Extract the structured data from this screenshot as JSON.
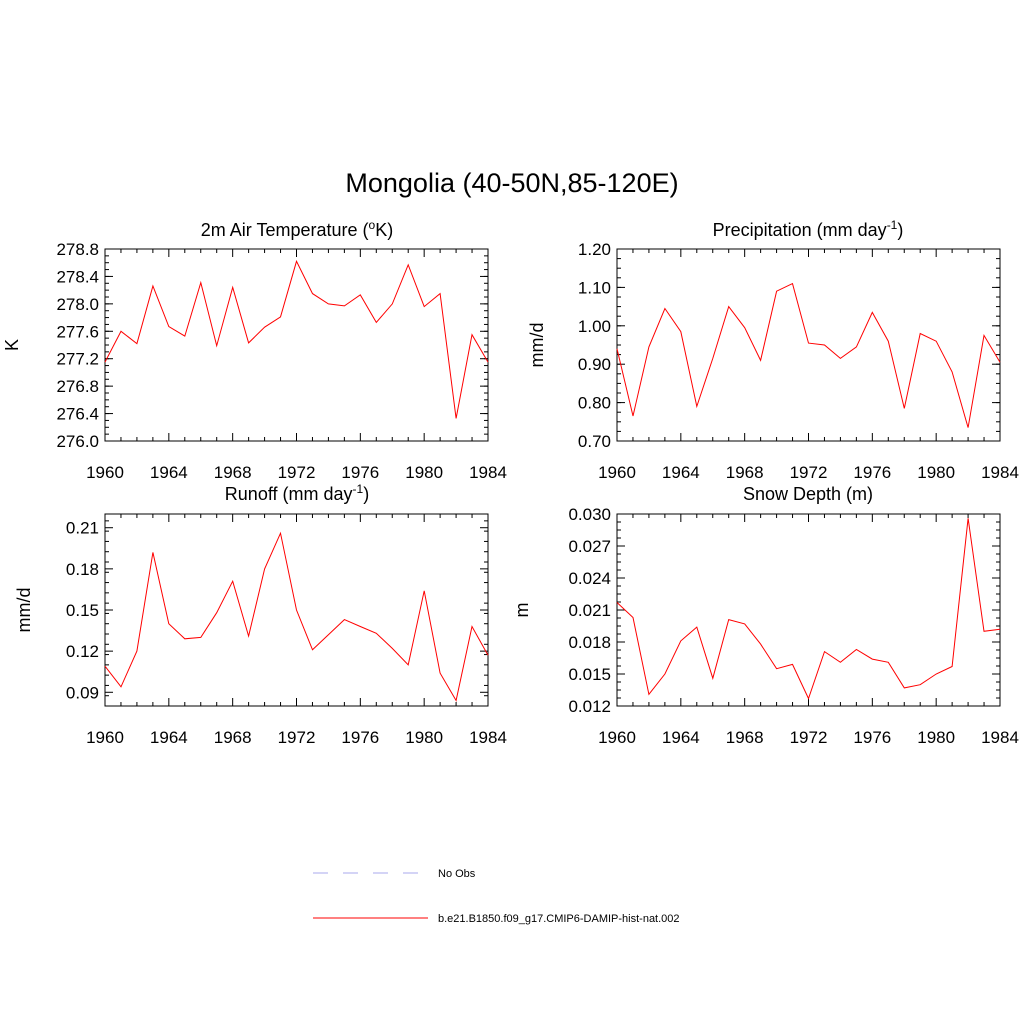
{
  "title": "Mongolia (40-50N,85-120E)",
  "chart_data": [
    {
      "type": "line",
      "title": "2m Air Temperature (",
      "title_unit": "K)",
      "title_sup": "o",
      "title_sup_before": "K",
      "ylabel": "K",
      "xlim": [
        1960,
        1984
      ],
      "ylim": [
        276.0,
        278.8
      ],
      "xticks": [
        "1960",
        "1964",
        "1968",
        "1972",
        "1976",
        "1980",
        "1984"
      ],
      "yticks": [
        "276.0",
        "276.4",
        "276.8",
        "277.2",
        "277.6",
        "278.0",
        "278.4",
        "278.8"
      ],
      "series": [
        {
          "color": "#ff0000",
          "x": [
            1960,
            1961,
            1962,
            1963,
            1964,
            1965,
            1966,
            1967,
            1968,
            1969,
            1970,
            1971,
            1972,
            1973,
            1974,
            1975,
            1976,
            1977,
            1978,
            1979,
            1980,
            1981,
            1982,
            1983,
            1984
          ],
          "y": [
            277.15,
            277.6,
            277.42,
            278.26,
            277.67,
            277.53,
            278.31,
            277.39,
            278.24,
            277.43,
            277.66,
            277.81,
            278.62,
            278.15,
            278.0,
            277.97,
            278.13,
            277.73,
            278.0,
            278.57,
            277.96,
            278.15,
            276.33,
            277.55,
            277.15
          ]
        }
      ]
    },
    {
      "type": "line",
      "title": "Precipitation (mm day",
      "title_sup": "-1",
      "title_end": ")",
      "ylabel": "mm/d",
      "xlim": [
        1960,
        1984
      ],
      "ylim": [
        0.7,
        1.2
      ],
      "xticks": [
        "1960",
        "1964",
        "1968",
        "1972",
        "1976",
        "1980",
        "1984"
      ],
      "yticks": [
        "0.70",
        "0.80",
        "0.90",
        "1.00",
        "1.10",
        "1.20"
      ],
      "series": [
        {
          "color": "#ff0000",
          "x": [
            1960,
            1961,
            1962,
            1963,
            1964,
            1965,
            1966,
            1967,
            1968,
            1969,
            1970,
            1971,
            1972,
            1973,
            1974,
            1975,
            1976,
            1977,
            1978,
            1979,
            1980,
            1981,
            1982,
            1983,
            1984
          ],
          "y": [
            0.94,
            0.765,
            0.945,
            1.045,
            0.985,
            0.79,
            0.915,
            1.05,
            0.995,
            0.91,
            1.09,
            1.11,
            0.955,
            0.95,
            0.915,
            0.945,
            1.035,
            0.96,
            0.785,
            0.98,
            0.96,
            0.88,
            0.735,
            0.975,
            0.905
          ]
        }
      ]
    },
    {
      "type": "line",
      "title": "Runoff (mm day",
      "title_sup": "-1",
      "title_end": ")",
      "ylabel": "mm/d",
      "xlim": [
        1960,
        1984
      ],
      "ylim": [
        0.08,
        0.22
      ],
      "xticks": [
        "1960",
        "1964",
        "1968",
        "1972",
        "1976",
        "1980",
        "1984"
      ],
      "yticks": [
        "0.09",
        "0.12",
        "0.15",
        "0.18",
        "0.21"
      ],
      "ytick_values": [
        0.09,
        0.12,
        0.15,
        0.18,
        0.21
      ],
      "series": [
        {
          "color": "#ff0000",
          "x": [
            1960,
            1961,
            1962,
            1963,
            1964,
            1965,
            1966,
            1967,
            1968,
            1969,
            1970,
            1971,
            1972,
            1973,
            1974,
            1975,
            1976,
            1977,
            1978,
            1979,
            1980,
            1981,
            1982,
            1983,
            1984
          ],
          "y": [
            0.109,
            0.094,
            0.12,
            0.192,
            0.14,
            0.129,
            0.13,
            0.148,
            0.171,
            0.131,
            0.18,
            0.206,
            0.15,
            0.121,
            0.132,
            0.143,
            0.138,
            0.133,
            0.122,
            0.11,
            0.164,
            0.104,
            0.084,
            0.138,
            0.117
          ]
        }
      ]
    },
    {
      "type": "line",
      "title": "Snow Depth (m)",
      "ylabel": "m",
      "xlim": [
        1960,
        1984
      ],
      "ylim": [
        0.012,
        0.03
      ],
      "xticks": [
        "1960",
        "1964",
        "1968",
        "1972",
        "1976",
        "1980",
        "1984"
      ],
      "yticks": [
        "0.012",
        "0.015",
        "0.018",
        "0.021",
        "0.024",
        "0.027",
        "0.030"
      ],
      "series": [
        {
          "color": "#ff0000",
          "x": [
            1960,
            1961,
            1962,
            1963,
            1964,
            1965,
            1966,
            1967,
            1968,
            1969,
            1970,
            1971,
            1972,
            1973,
            1974,
            1975,
            1976,
            1977,
            1978,
            1979,
            1980,
            1981,
            1982,
            1983,
            1984
          ],
          "y": [
            0.0217,
            0.0203,
            0.0131,
            0.015,
            0.0181,
            0.0194,
            0.0146,
            0.0201,
            0.0197,
            0.0178,
            0.0155,
            0.0159,
            0.0127,
            0.0171,
            0.0161,
            0.0173,
            0.0164,
            0.0161,
            0.0137,
            0.014,
            0.015,
            0.0157,
            0.0296,
            0.019,
            0.0192
          ]
        }
      ]
    }
  ],
  "legend": [
    {
      "label": "No Obs",
      "color": "#aaaaee",
      "style": "dashed"
    },
    {
      "label": "b.e21.B1850.f09_g17.CMIP6-DAMIP-hist-nat.002",
      "color": "#ff0000",
      "style": "solid"
    }
  ]
}
